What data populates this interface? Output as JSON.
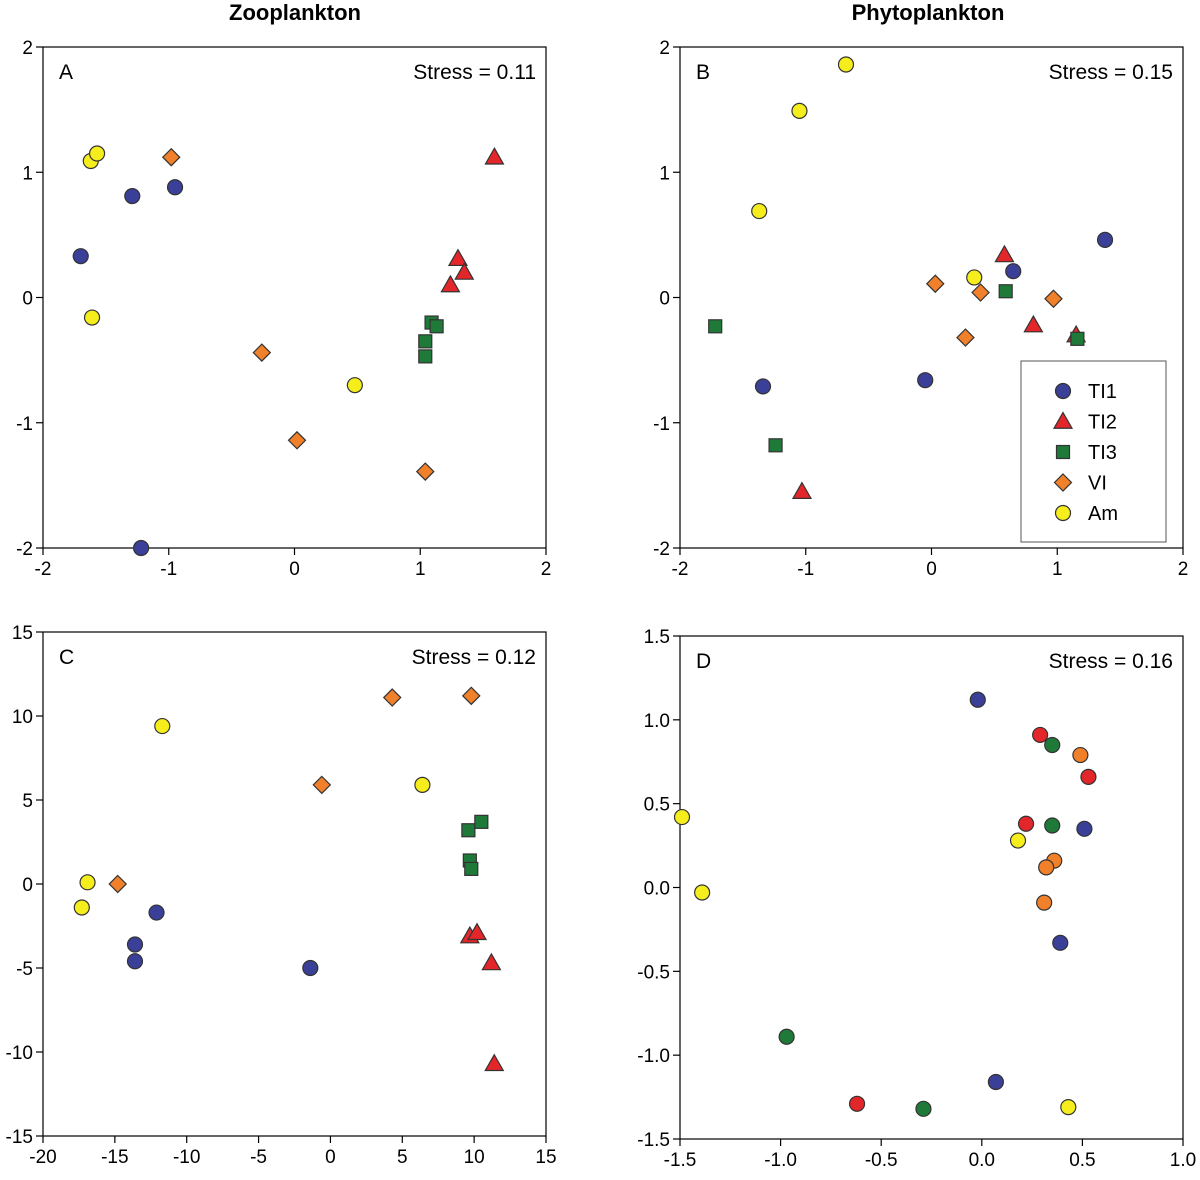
{
  "column_titles": {
    "left": "Zooplankton",
    "right": "Phytoplankton"
  },
  "colors": {
    "TI1": "#3a3f98",
    "TI2": "#e3262a",
    "TI3": "#1f7a3a",
    "VI": "#f0802a",
    "Am": "#f6ee1c",
    "outline": "#333333"
  },
  "legend": [
    {
      "key": "TI1",
      "label": "TI1",
      "shape": "circle"
    },
    {
      "key": "TI2",
      "label": "TI2",
      "shape": "triangle"
    },
    {
      "key": "TI3",
      "label": "TI3",
      "shape": "square"
    },
    {
      "key": "VI",
      "label": "VI",
      "shape": "diamond"
    },
    {
      "key": "Am",
      "label": "Am",
      "shape": "circle"
    }
  ],
  "chart_data": [
    {
      "id": "A",
      "type": "scatter",
      "label": "A",
      "stress": "Stress = 0.11",
      "xlim": [
        -2,
        2
      ],
      "ylim": [
        -2,
        2
      ],
      "xticks": [
        "-2",
        "-1",
        "0",
        "1",
        "2"
      ],
      "xtick_values": [
        -2,
        -1,
        0,
        1,
        2
      ],
      "yticks": [
        "-2",
        "-1",
        "0",
        "1",
        "2"
      ],
      "ytick_values": [
        -2,
        -1,
        0,
        1,
        2
      ],
      "points": [
        {
          "x": -1.62,
          "y": 1.09,
          "group": "Am",
          "shape": "circle"
        },
        {
          "x": -1.57,
          "y": 1.15,
          "group": "Am",
          "shape": "circle"
        },
        {
          "x": -1.61,
          "y": -0.16,
          "group": "Am",
          "shape": "circle"
        },
        {
          "x": 0.48,
          "y": -0.7,
          "group": "Am",
          "shape": "circle"
        },
        {
          "x": -1.7,
          "y": 0.33,
          "group": "TI1",
          "shape": "circle"
        },
        {
          "x": -1.29,
          "y": 0.81,
          "group": "TI1",
          "shape": "circle"
        },
        {
          "x": -0.95,
          "y": 0.88,
          "group": "TI1",
          "shape": "circle"
        },
        {
          "x": -1.22,
          "y": -2.0,
          "group": "TI1",
          "shape": "circle"
        },
        {
          "x": -0.98,
          "y": 1.12,
          "group": "VI",
          "shape": "diamond"
        },
        {
          "x": -0.26,
          "y": -0.44,
          "group": "VI",
          "shape": "diamond"
        },
        {
          "x": 0.02,
          "y": -1.14,
          "group": "VI",
          "shape": "diamond"
        },
        {
          "x": 1.04,
          "y": -1.39,
          "group": "VI",
          "shape": "diamond"
        },
        {
          "x": 1.59,
          "y": 1.12,
          "group": "TI2",
          "shape": "triangle"
        },
        {
          "x": 1.3,
          "y": 0.31,
          "group": "TI2",
          "shape": "triangle"
        },
        {
          "x": 1.35,
          "y": 0.2,
          "group": "TI2",
          "shape": "triangle"
        },
        {
          "x": 1.24,
          "y": 0.1,
          "group": "TI2",
          "shape": "triangle"
        },
        {
          "x": 1.09,
          "y": -0.2,
          "group": "TI3",
          "shape": "square"
        },
        {
          "x": 1.13,
          "y": -0.23,
          "group": "TI3",
          "shape": "square"
        },
        {
          "x": 1.04,
          "y": -0.35,
          "group": "TI3",
          "shape": "square"
        },
        {
          "x": 1.04,
          "y": -0.47,
          "group": "TI3",
          "shape": "square"
        }
      ]
    },
    {
      "id": "B",
      "type": "scatter",
      "label": "B",
      "stress": "Stress = 0.15",
      "xlim": [
        -2,
        2
      ],
      "ylim": [
        -2,
        2
      ],
      "xticks": [
        "-2",
        "-1",
        "0",
        "1",
        "2"
      ],
      "xtick_values": [
        -2,
        -1,
        0,
        1,
        2
      ],
      "yticks": [
        "-2",
        "-1",
        "0",
        "1",
        "2"
      ],
      "ytick_values": [
        -2,
        -1,
        0,
        1,
        2
      ],
      "points": [
        {
          "x": -0.68,
          "y": 1.86,
          "group": "Am",
          "shape": "circle"
        },
        {
          "x": -1.05,
          "y": 1.49,
          "group": "Am",
          "shape": "circle"
        },
        {
          "x": -1.37,
          "y": 0.69,
          "group": "Am",
          "shape": "circle"
        },
        {
          "x": 0.34,
          "y": 0.16,
          "group": "Am",
          "shape": "circle"
        },
        {
          "x": 1.38,
          "y": 0.46,
          "group": "TI1",
          "shape": "circle"
        },
        {
          "x": 0.65,
          "y": 0.21,
          "group": "TI1",
          "shape": "circle"
        },
        {
          "x": -0.05,
          "y": -0.66,
          "group": "TI1",
          "shape": "circle"
        },
        {
          "x": -1.34,
          "y": -0.71,
          "group": "TI1",
          "shape": "circle"
        },
        {
          "x": 0.58,
          "y": 0.34,
          "group": "TI2",
          "shape": "triangle"
        },
        {
          "x": 0.81,
          "y": -0.22,
          "group": "TI2",
          "shape": "triangle"
        },
        {
          "x": 1.15,
          "y": -0.3,
          "group": "TI2",
          "shape": "triangle"
        },
        {
          "x": -1.03,
          "y": -1.55,
          "group": "TI2",
          "shape": "triangle"
        },
        {
          "x": 0.59,
          "y": 0.05,
          "group": "TI3",
          "shape": "square"
        },
        {
          "x": 1.16,
          "y": -0.33,
          "group": "TI3",
          "shape": "square"
        },
        {
          "x": -1.72,
          "y": -0.23,
          "group": "TI3",
          "shape": "square"
        },
        {
          "x": -1.24,
          "y": -1.18,
          "group": "TI3",
          "shape": "square"
        },
        {
          "x": 0.03,
          "y": 0.11,
          "group": "VI",
          "shape": "diamond"
        },
        {
          "x": 0.39,
          "y": 0.04,
          "group": "VI",
          "shape": "diamond"
        },
        {
          "x": 0.97,
          "y": -0.01,
          "group": "VI",
          "shape": "diamond"
        },
        {
          "x": 0.27,
          "y": -0.32,
          "group": "VI",
          "shape": "diamond"
        }
      ]
    },
    {
      "id": "C",
      "type": "scatter",
      "label": "C",
      "stress": "Stress = 0.12",
      "xlim": [
        -20,
        15
      ],
      "ylim": [
        -15,
        15
      ],
      "xticks": [
        "-20",
        "-15",
        "-10",
        "-5",
        "0",
        "5",
        "10",
        "15"
      ],
      "xtick_values": [
        -20,
        -15,
        -10,
        -5,
        0,
        5,
        10,
        15
      ],
      "yticks": [
        "-15",
        "-10",
        "-5",
        "0",
        "5",
        "10",
        "15"
      ],
      "ytick_values": [
        -15,
        -10,
        -5,
        0,
        5,
        10,
        15
      ],
      "points": [
        {
          "x": -11.7,
          "y": 9.4,
          "group": "Am",
          "shape": "circle"
        },
        {
          "x": -16.9,
          "y": 0.1,
          "group": "Am",
          "shape": "circle"
        },
        {
          "x": -17.3,
          "y": -1.4,
          "group": "Am",
          "shape": "circle"
        },
        {
          "x": 6.4,
          "y": 5.9,
          "group": "Am",
          "shape": "circle"
        },
        {
          "x": -12.1,
          "y": -1.7,
          "group": "TI1",
          "shape": "circle"
        },
        {
          "x": -13.6,
          "y": -3.6,
          "group": "TI1",
          "shape": "circle"
        },
        {
          "x": -13.6,
          "y": -4.6,
          "group": "TI1",
          "shape": "circle"
        },
        {
          "x": -1.4,
          "y": -5.0,
          "group": "TI1",
          "shape": "circle"
        },
        {
          "x": -14.8,
          "y": 0.0,
          "group": "VI",
          "shape": "diamond"
        },
        {
          "x": -0.6,
          "y": 5.9,
          "group": "VI",
          "shape": "diamond"
        },
        {
          "x": 4.3,
          "y": 11.1,
          "group": "VI",
          "shape": "diamond"
        },
        {
          "x": 9.8,
          "y": 11.2,
          "group": "VI",
          "shape": "diamond"
        },
        {
          "x": 9.6,
          "y": 3.2,
          "group": "TI3",
          "shape": "square"
        },
        {
          "x": 10.5,
          "y": 3.7,
          "group": "TI3",
          "shape": "square"
        },
        {
          "x": 9.7,
          "y": 1.4,
          "group": "TI3",
          "shape": "square"
        },
        {
          "x": 9.8,
          "y": 0.9,
          "group": "TI3",
          "shape": "square"
        },
        {
          "x": 9.7,
          "y": -3.1,
          "group": "TI2",
          "shape": "triangle"
        },
        {
          "x": 10.2,
          "y": -2.9,
          "group": "TI2",
          "shape": "triangle"
        },
        {
          "x": 11.2,
          "y": -4.7,
          "group": "TI2",
          "shape": "triangle"
        },
        {
          "x": 11.4,
          "y": -10.7,
          "group": "TI2",
          "shape": "triangle"
        }
      ]
    },
    {
      "id": "D",
      "type": "scatter",
      "label": "D",
      "stress": "Stress = 0.16",
      "xlim": [
        -1.5,
        1.0
      ],
      "ylim": [
        -1.5,
        1.5
      ],
      "xticks": [
        "-1.5",
        "-1.0",
        "-0.5",
        "0.0",
        "0.5",
        "1.0"
      ],
      "xtick_values": [
        -1.5,
        -1.0,
        -0.5,
        0.0,
        0.5,
        1.0
      ],
      "yticks": [
        "-1.5",
        "-1.0",
        "-0.5",
        "0.0",
        "0.5",
        "1.0",
        "1.5"
      ],
      "ytick_values": [
        -1.5,
        -1.0,
        -0.5,
        0.0,
        0.5,
        1.0,
        1.5
      ],
      "points": [
        {
          "x": -0.02,
          "y": 1.12,
          "group": "TI1",
          "shape": "circle"
        },
        {
          "x": 0.51,
          "y": 0.35,
          "group": "TI1",
          "shape": "circle"
        },
        {
          "x": 0.39,
          "y": -0.33,
          "group": "TI1",
          "shape": "circle"
        },
        {
          "x": 0.07,
          "y": -1.16,
          "group": "TI1",
          "shape": "circle"
        },
        {
          "x": 0.29,
          "y": 0.91,
          "group": "TI2",
          "shape": "circle"
        },
        {
          "x": 0.53,
          "y": 0.66,
          "group": "TI2",
          "shape": "circle"
        },
        {
          "x": 0.22,
          "y": 0.38,
          "group": "TI2",
          "shape": "circle"
        },
        {
          "x": -0.62,
          "y": -1.29,
          "group": "TI2",
          "shape": "circle"
        },
        {
          "x": 0.35,
          "y": 0.85,
          "group": "TI3",
          "shape": "circle"
        },
        {
          "x": 0.35,
          "y": 0.37,
          "group": "TI3",
          "shape": "circle"
        },
        {
          "x": -0.97,
          "y": -0.89,
          "group": "TI3",
          "shape": "circle"
        },
        {
          "x": -0.29,
          "y": -1.32,
          "group": "TI3",
          "shape": "circle"
        },
        {
          "x": 0.49,
          "y": 0.79,
          "group": "VI",
          "shape": "circle"
        },
        {
          "x": 0.36,
          "y": 0.16,
          "group": "VI",
          "shape": "circle"
        },
        {
          "x": 0.32,
          "y": 0.12,
          "group": "VI",
          "shape": "circle"
        },
        {
          "x": 0.31,
          "y": -0.09,
          "group": "VI",
          "shape": "circle"
        },
        {
          "x": 0.18,
          "y": 0.28,
          "group": "Am",
          "shape": "circle"
        },
        {
          "x": -1.49,
          "y": 0.42,
          "group": "Am",
          "shape": "circle"
        },
        {
          "x": -1.39,
          "y": -0.03,
          "group": "Am",
          "shape": "circle"
        },
        {
          "x": 0.43,
          "y": -1.31,
          "group": "Am",
          "shape": "circle"
        }
      ]
    }
  ]
}
